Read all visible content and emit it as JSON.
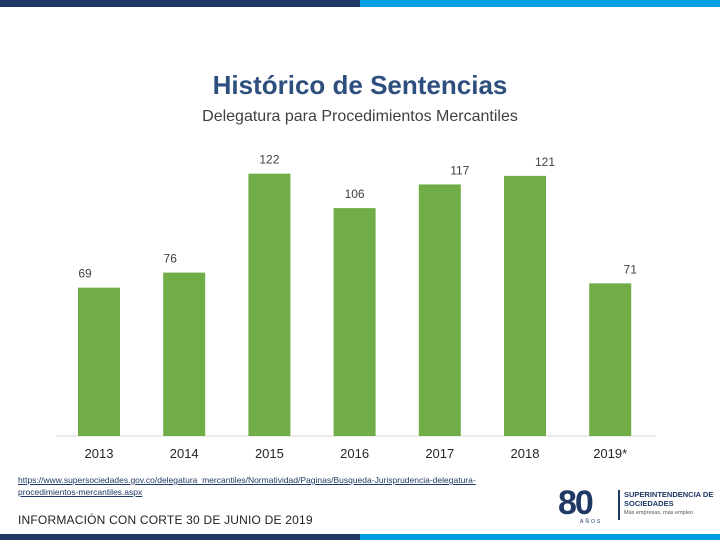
{
  "header": {
    "title": "Histórico de Sentencias",
    "subtitle": "Delegatura para Procedimientos Mercantiles"
  },
  "chart_data": {
    "type": "bar",
    "title": "Histórico de Sentencias",
    "subtitle": "Delegatura para Procedimientos Mercantiles",
    "categories": [
      "2013",
      "2014",
      "2015",
      "2016",
      "2017",
      "2018",
      "2019*"
    ],
    "values": [
      69,
      76,
      122,
      106,
      117,
      121,
      71
    ],
    "data_labels": [
      "69",
      "76",
      "122",
      "106",
      "117",
      "121",
      "71"
    ],
    "xlabel": "",
    "ylabel": "",
    "ylim": [
      0,
      130
    ],
    "grid": false,
    "bar_color": "#70ad47"
  },
  "footer": {
    "link": "https://www.supersociedades.gov.co/delegatura_mercantiles/Normatividad/Paginas/Busqueda-Jurisprudencia-delegatura-procedimientos-mercantiles.aspx",
    "cutoff": "INFORMACIÓN CON CORTE 30 DE JUNIO DE 2019"
  },
  "logo": {
    "number": "80",
    "anos": "AÑOS",
    "name": "SUPERINTENDENCIA DE SOCIEDADES",
    "tagline": "Más empresas, más empleo"
  },
  "colors": {
    "top_bar_left": "#1f3864",
    "top_bar_right": "#00a0e3",
    "title": "#2e4f7e",
    "bars": "#70ad47"
  }
}
